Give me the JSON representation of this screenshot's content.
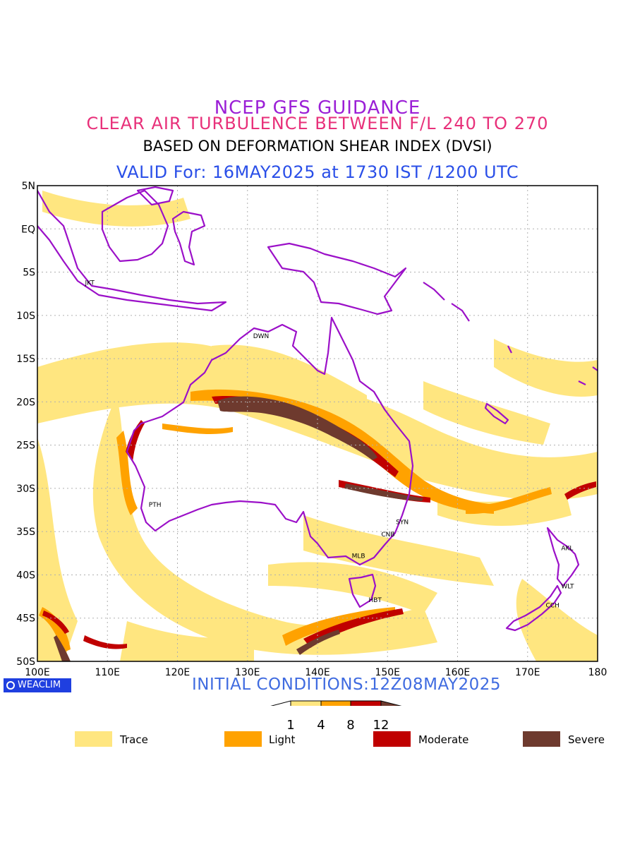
{
  "titles": {
    "line1": "NCEP GFS GUIDANCE",
    "line2": "CLEAR AIR TURBULENCE BETWEEN F/L 240 TO 270",
    "line3": "BASED ON DEFORMATION SHEAR INDEX (DVSI)",
    "line4": "VALID For: 16MAY2025 at 1730 IST /1200 UTC"
  },
  "map": {
    "lat_ticks": [
      "5N",
      "EQ",
      "5S",
      "10S",
      "15S",
      "20S",
      "25S",
      "30S",
      "35S",
      "40S",
      "45S",
      "50S"
    ],
    "lon_ticks": [
      "100E",
      "110E",
      "120E",
      "130E",
      "140E",
      "150E",
      "160E",
      "170E",
      "180"
    ],
    "lon_range": [
      100,
      180
    ],
    "lat_range": [
      -50,
      5
    ],
    "grid": true,
    "stations": [
      {
        "code": "JKT",
        "lon": 106.8,
        "lat": -6.2
      },
      {
        "code": "DWN",
        "lon": 130.8,
        "lat": -12.4
      },
      {
        "code": "PTH",
        "lon": 115.9,
        "lat": -31.9
      },
      {
        "code": "SYN",
        "lon": 151.2,
        "lat": -33.9
      },
      {
        "code": "CNB",
        "lon": 149.1,
        "lat": -35.3
      },
      {
        "code": "MLB",
        "lon": 144.9,
        "lat": -37.8
      },
      {
        "code": "HBT",
        "lon": 147.3,
        "lat": -42.9
      },
      {
        "code": "AKL",
        "lon": 174.8,
        "lat": -36.9
      },
      {
        "code": "WLT",
        "lon": 174.8,
        "lat": -41.3
      },
      {
        "code": "CCH",
        "lon": 172.6,
        "lat": -43.5
      }
    ]
  },
  "initial_conditions": "INITIAL CONDITIONS:12Z08MAY2025",
  "logo_text": "WEACLIM",
  "colorbar": {
    "thresholds": [
      "1",
      "4",
      "8",
      "12"
    ],
    "colors": [
      "#ffe680",
      "#ffa200",
      "#c00000",
      "#6e3a2e"
    ]
  },
  "legend": [
    {
      "label": "Trace",
      "color": "#ffe680"
    },
    {
      "label": "Light",
      "color": "#ffa200"
    },
    {
      "label": "Moderate",
      "color": "#c00000"
    },
    {
      "label": "Severe",
      "color": "#6e3a2e"
    }
  ],
  "colors": {
    "coast": "#9b10c8",
    "grid": "#b0b0b0"
  }
}
